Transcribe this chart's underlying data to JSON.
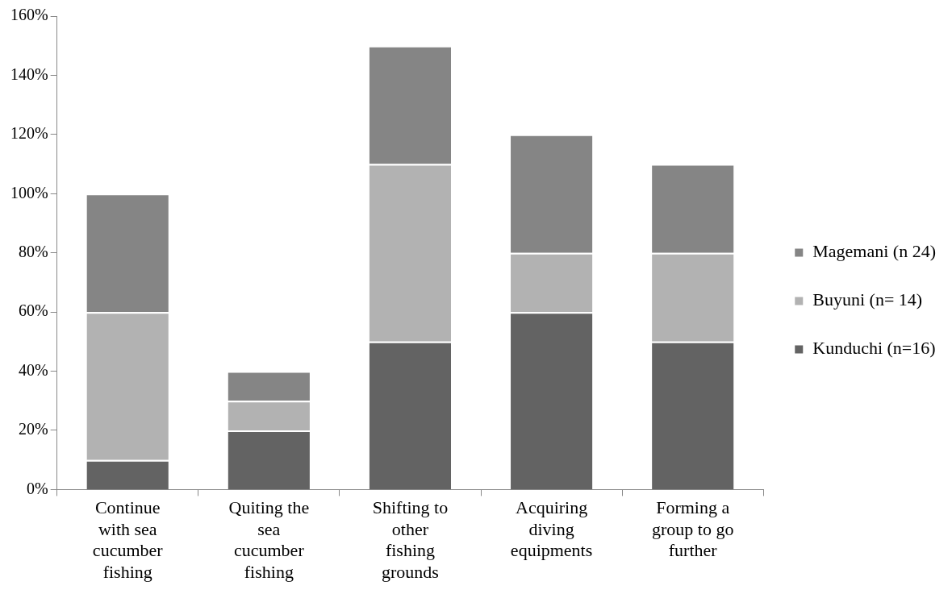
{
  "chart_data": {
    "type": "bar",
    "stacked": true,
    "legend": "right",
    "grid": false,
    "categories": [
      "Continue with sea cucumber fishing",
      "Quiting the sea cucumber fishing",
      "Shifting to other fishing grounds",
      "Acquiring diving equipments",
      "Forming a group to go further"
    ],
    "series": [
      {
        "name": "Kunduchi (n=16)",
        "color": "#636363",
        "values": [
          10,
          20,
          50,
          60,
          50
        ]
      },
      {
        "name": "Buyuni (n= 14)",
        "color": "#b2b2b2",
        "values": [
          50,
          10,
          60,
          20,
          30
        ]
      },
      {
        "name": "Magemani (n 24)",
        "color": "#858585",
        "values": [
          40,
          10,
          40,
          40,
          30
        ]
      }
    ],
    "ylim": [
      0,
      160
    ],
    "yticks": [
      {
        "value": 0,
        "label": "0%"
      },
      {
        "value": 20,
        "label": "20%"
      },
      {
        "value": 40,
        "label": "40%"
      },
      {
        "value": 60,
        "label": "60%"
      },
      {
        "value": 80,
        "label": "80%"
      },
      {
        "value": 100,
        "label": "100%"
      },
      {
        "value": 120,
        "label": "120%"
      },
      {
        "value": 140,
        "label": "140%"
      },
      {
        "value": 160,
        "label": "160%"
      }
    ]
  }
}
